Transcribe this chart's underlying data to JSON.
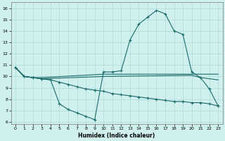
{
  "xlabel": "Humidex (Indice chaleur)",
  "background_color": "#cff0ec",
  "line_color": "#1a6b6b",
  "grid_color": "#aaddd8",
  "xlim": [
    -0.5,
    23.5
  ],
  "ylim": [
    5.8,
    16.5
  ],
  "xticks": [
    0,
    1,
    2,
    3,
    4,
    5,
    6,
    7,
    8,
    9,
    10,
    11,
    12,
    13,
    14,
    15,
    16,
    17,
    18,
    19,
    20,
    21,
    22,
    23
  ],
  "yticks": [
    6,
    7,
    8,
    9,
    10,
    11,
    12,
    13,
    14,
    15,
    16
  ],
  "line1_x": [
    0,
    1,
    2,
    3,
    4,
    5,
    6,
    7,
    8,
    9,
    10,
    11,
    12,
    13,
    14,
    15,
    16,
    17,
    18,
    19,
    20,
    21,
    22,
    23
  ],
  "line1_y": [
    10.8,
    10.0,
    9.9,
    9.8,
    9.7,
    7.6,
    7.1,
    6.8,
    6.5,
    6.2,
    10.4,
    10.4,
    10.5,
    13.2,
    14.6,
    15.2,
    15.8,
    15.5,
    14.0,
    13.7,
    10.4,
    9.9,
    8.9,
    7.4
  ],
  "line2_x": [
    0,
    1,
    2,
    3,
    4,
    5,
    6,
    7,
    8,
    9,
    10,
    11,
    12,
    13,
    14,
    15,
    16,
    17,
    18,
    19,
    20,
    21,
    22,
    23
  ],
  "line2_y": [
    10.8,
    10.0,
    9.9,
    9.8,
    9.7,
    9.5,
    9.3,
    9.1,
    8.9,
    8.8,
    8.7,
    8.5,
    8.4,
    8.3,
    8.2,
    8.1,
    8.0,
    7.9,
    7.8,
    7.8,
    7.7,
    7.7,
    7.6,
    7.4
  ],
  "line3_x": [
    0,
    1,
    2,
    3,
    10,
    20,
    23
  ],
  "line3_y": [
    10.8,
    10.0,
    9.9,
    9.9,
    10.2,
    10.2,
    10.2
  ],
  "line4_x": [
    0,
    1,
    2,
    3,
    10,
    20,
    21,
    22,
    23
  ],
  "line4_y": [
    10.8,
    10.0,
    9.9,
    9.8,
    10.0,
    10.1,
    9.9,
    9.8,
    9.7
  ]
}
